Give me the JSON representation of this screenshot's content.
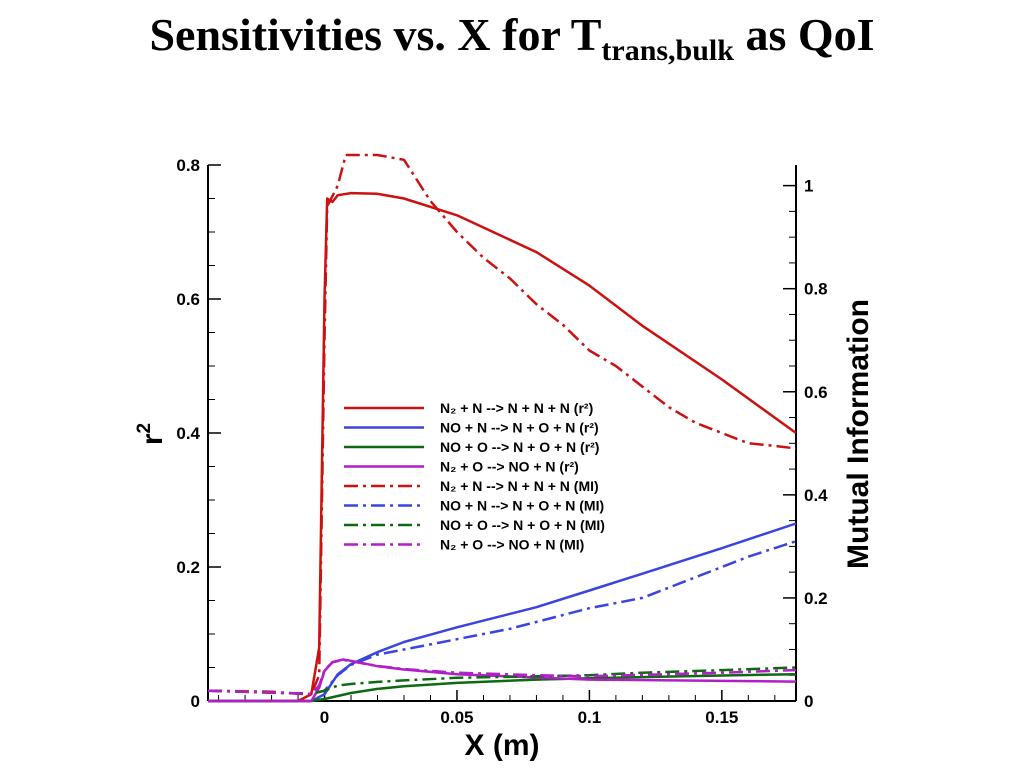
{
  "title": {
    "main": "Sensitivities vs. X for T",
    "sub": "trans,bulk",
    "tail": " as QoI"
  },
  "chart_data": {
    "type": "line",
    "xlabel": "X (m)",
    "ylabel": "r",
    "ylabel_sup": "2",
    "y2label": "Mutual Information",
    "xlim": [
      -0.044,
      0.178
    ],
    "ylim": [
      0,
      0.8
    ],
    "y2lim": [
      0,
      1.04
    ],
    "x_ticks": [
      0,
      0.05,
      0.1,
      0.15
    ],
    "x_tick_labels": [
      "0",
      "0.05",
      "0.1",
      "0.15"
    ],
    "y_ticks": [
      0,
      0.2,
      0.4,
      0.6,
      0.8
    ],
    "y_tick_labels": [
      "0",
      "0.2",
      "0.4",
      "0.6",
      "0.8"
    ],
    "y2_ticks": [
      0,
      0.2,
      0.4,
      0.6,
      0.8,
      1
    ],
    "y2_tick_labels": [
      "0",
      "0.2",
      "0.4",
      "0.6",
      "0.8",
      "1"
    ],
    "grid": false,
    "legend_position": "center",
    "series": [
      {
        "name": "N₂ + N --> N + N + N (r²)",
        "color": "#cc1111",
        "dash": "solid",
        "axis": "left",
        "x": [
          -0.044,
          -0.01,
          -0.005,
          -0.002,
          0.0,
          0.001,
          0.003,
          0.005,
          0.01,
          0.02,
          0.03,
          0.05,
          0.08,
          0.1,
          0.12,
          0.15,
          0.178
        ],
        "y": [
          0.0,
          0.0,
          0.01,
          0.08,
          0.6,
          0.75,
          0.745,
          0.755,
          0.758,
          0.757,
          0.75,
          0.725,
          0.67,
          0.62,
          0.56,
          0.48,
          0.4
        ]
      },
      {
        "name": "NO + N --> N + O + N (r²)",
        "color": "#3a45e0",
        "dash": "solid",
        "axis": "left",
        "x": [
          -0.044,
          -0.005,
          0.0,
          0.005,
          0.01,
          0.02,
          0.03,
          0.05,
          0.08,
          0.1,
          0.12,
          0.15,
          0.178
        ],
        "y": [
          0.0,
          0.0,
          0.01,
          0.04,
          0.055,
          0.073,
          0.088,
          0.11,
          0.14,
          0.165,
          0.19,
          0.228,
          0.265
        ]
      },
      {
        "name": "NO + O --> N + O + N (r²)",
        "color": "#0e6a12",
        "dash": "solid",
        "axis": "left",
        "x": [
          -0.044,
          -0.005,
          0.0,
          0.01,
          0.02,
          0.03,
          0.05,
          0.08,
          0.1,
          0.15,
          0.178
        ],
        "y": [
          0.0,
          0.0,
          0.003,
          0.012,
          0.018,
          0.022,
          0.027,
          0.032,
          0.034,
          0.038,
          0.04
        ]
      },
      {
        "name": "N₂ + O --> NO + N (r²)",
        "color": "#b01fc7",
        "dash": "solid",
        "axis": "left",
        "x": [
          -0.044,
          -0.005,
          -0.002,
          0.0,
          0.003,
          0.007,
          0.01,
          0.02,
          0.03,
          0.05,
          0.08,
          0.1,
          0.15,
          0.178
        ],
        "y": [
          0.0,
          0.0,
          0.02,
          0.045,
          0.058,
          0.062,
          0.06,
          0.052,
          0.047,
          0.04,
          0.035,
          0.032,
          0.03,
          0.029
        ]
      },
      {
        "name": "N₂ + N --> N + N + N (MI)",
        "color": "#cc1111",
        "dash": "dashdot",
        "axis": "right",
        "x": [
          -0.044,
          -0.02,
          -0.01,
          -0.005,
          -0.002,
          0.0,
          0.001,
          0.003,
          0.005,
          0.008,
          0.01,
          0.015,
          0.02,
          0.03,
          0.04,
          0.05,
          0.06,
          0.07,
          0.08,
          0.09,
          0.1,
          0.11,
          0.12,
          0.13,
          0.14,
          0.15,
          0.16,
          0.17,
          0.178
        ],
        "y": [
          0.02,
          0.018,
          0.014,
          0.013,
          0.05,
          0.7,
          0.96,
          0.98,
          1.0,
          1.08,
          1.1,
          1.1,
          1.09,
          1.05,
          0.97,
          0.91,
          0.86,
          0.82,
          0.77,
          0.73,
          0.68,
          0.65,
          0.61,
          0.57,
          0.54,
          0.52,
          0.5,
          0.495,
          0.49
        ]
      },
      {
        "name": "NO + N --> N + O + N (MI)",
        "color": "#3a45e0",
        "dash": "dashdot",
        "axis": "right",
        "x": [
          -0.044,
          -0.005,
          0.0,
          0.005,
          0.01,
          0.02,
          0.03,
          0.05,
          0.07,
          0.1,
          0.12,
          0.14,
          0.16,
          0.178
        ],
        "y": [
          0.02,
          0.014,
          0.02,
          0.05,
          0.07,
          0.09,
          0.1,
          0.12,
          0.14,
          0.18,
          0.2,
          0.24,
          0.28,
          0.31
        ]
      },
      {
        "name": "NO + O --> N + O + N (MI)",
        "color": "#0e6a12",
        "dash": "dashdot",
        "axis": "right",
        "x": [
          -0.044,
          -0.005,
          0.0,
          0.005,
          0.01,
          0.02,
          0.03,
          0.05,
          0.08,
          0.1,
          0.12,
          0.15,
          0.178
        ],
        "y": [
          0.02,
          0.014,
          0.02,
          0.03,
          0.033,
          0.037,
          0.04,
          0.045,
          0.048,
          0.05,
          0.055,
          0.06,
          0.065
        ]
      },
      {
        "name": "N₂ + O --> NO + N (MI)",
        "color": "#b01fc7",
        "dash": "dashdot",
        "axis": "right",
        "x": [
          -0.044,
          -0.005,
          -0.002,
          0.0,
          0.003,
          0.007,
          0.01,
          0.02,
          0.03,
          0.05,
          0.08,
          0.1,
          0.15,
          0.178
        ],
        "y": [
          0.02,
          0.014,
          0.03,
          0.06,
          0.075,
          0.08,
          0.077,
          0.068,
          0.062,
          0.055,
          0.05,
          0.048,
          0.055,
          0.06
        ]
      }
    ]
  }
}
